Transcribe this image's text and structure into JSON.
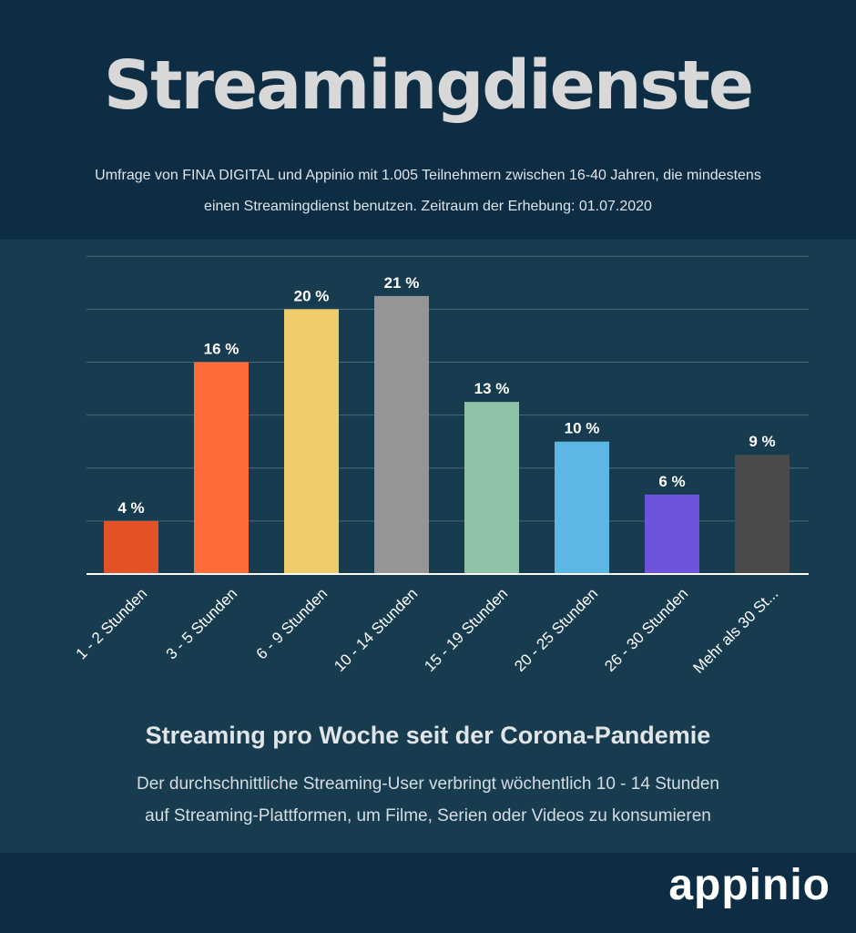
{
  "header": {
    "title": "Streamingdienste",
    "subtitle_line1": "Umfrage von FINA DIGITAL und Appinio mit 1.005 Teilnehmern zwischen 16-40 Jahren, die mindestens",
    "subtitle_line2": "einen Streamingdienst benutzen.  Zeitraum der Erhebung: 01.07.2020"
  },
  "chart_data": {
    "type": "bar",
    "title": "Streaming pro Woche seit der Corona-Pandemie",
    "categories": [
      "1 - 2 Stunden",
      "3 - 5 Stunden",
      "6 - 9 Stunden",
      "10 - 14 Stunden",
      "15 - 19 Stunden",
      "20 - 25 Stunden",
      "26 - 30 Stunden",
      "Mehr als 30 St..."
    ],
    "values": [
      4,
      16,
      20,
      21,
      13,
      10,
      6,
      9
    ],
    "value_labels": [
      "4 %",
      "16 %",
      "20 %",
      "21 %",
      "13 %",
      "10 %",
      "6 %",
      "9 %"
    ],
    "colors": [
      "#e35327",
      "#ff6c3a",
      "#eecc6a",
      "#959595",
      "#8ec3a7",
      "#5db7e5",
      "#6e54dd",
      "#4a4a4a"
    ],
    "ylim": [
      0,
      24
    ],
    "grid": true,
    "legend": "none",
    "xlabel": "",
    "ylabel": ""
  },
  "caption": {
    "line1": "Der durchschnittliche Streaming-User verbringt wöchentlich 10 - 14 Stunden",
    "line2": "auf Streaming-Plattformen, um Filme, Serien oder Videos zu konsumieren"
  },
  "footer": {
    "logo_text": "appinio"
  }
}
